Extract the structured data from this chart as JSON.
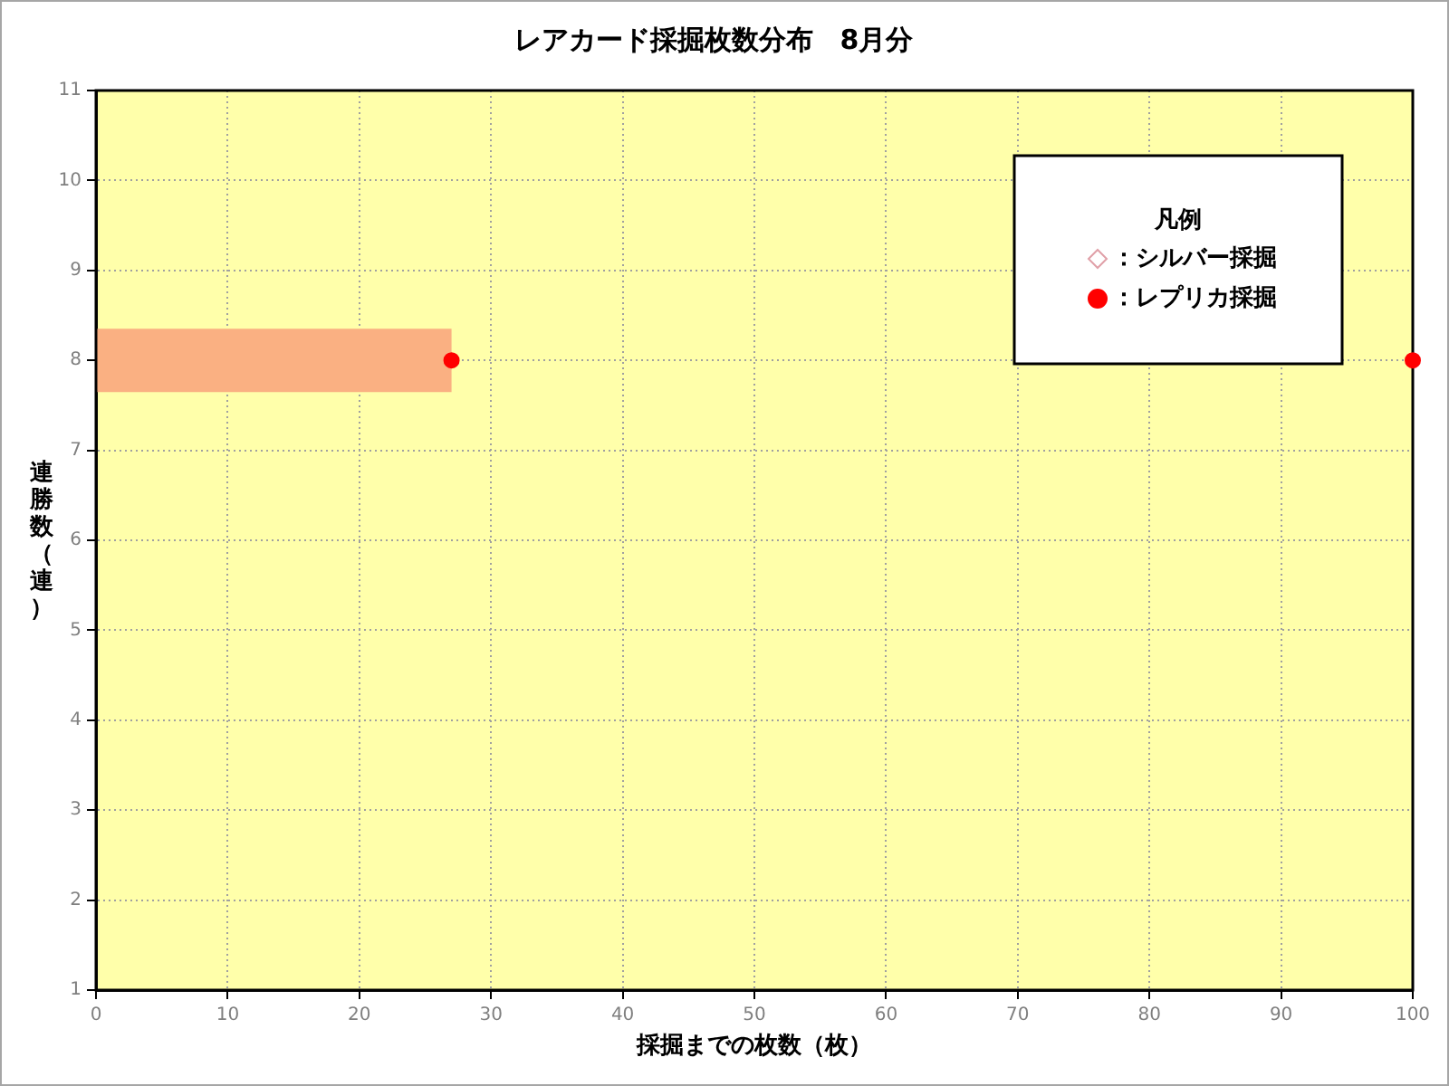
{
  "chart_data": {
    "type": "scatter",
    "title": "レアカード採掘枚数分布　8月分",
    "xlabel": "採掘までの枚数（枚）",
    "ylabel": "連勝数（連）",
    "legend_title": "凡例",
    "xlim": [
      0,
      100
    ],
    "ylim": [
      1,
      11
    ],
    "xticks": [
      0,
      10,
      20,
      30,
      40,
      50,
      60,
      70,
      80,
      90,
      100
    ],
    "yticks": [
      1,
      2,
      3,
      4,
      5,
      6,
      7,
      8,
      9,
      10,
      11
    ],
    "grid": true,
    "legend": "top right",
    "series": [
      {
        "name": "：シルバー採掘",
        "color": "#e0a0a8",
        "marker": "diamond"
      },
      {
        "name": "：レプリカ採掘",
        "color": "#ff0000",
        "marker": "circle",
        "x": [
          27,
          100
        ],
        "values": [
          8,
          8
        ],
        "xerrors": [
          [
            0,
            27
          ],
          null
        ]
      }
    ]
  }
}
